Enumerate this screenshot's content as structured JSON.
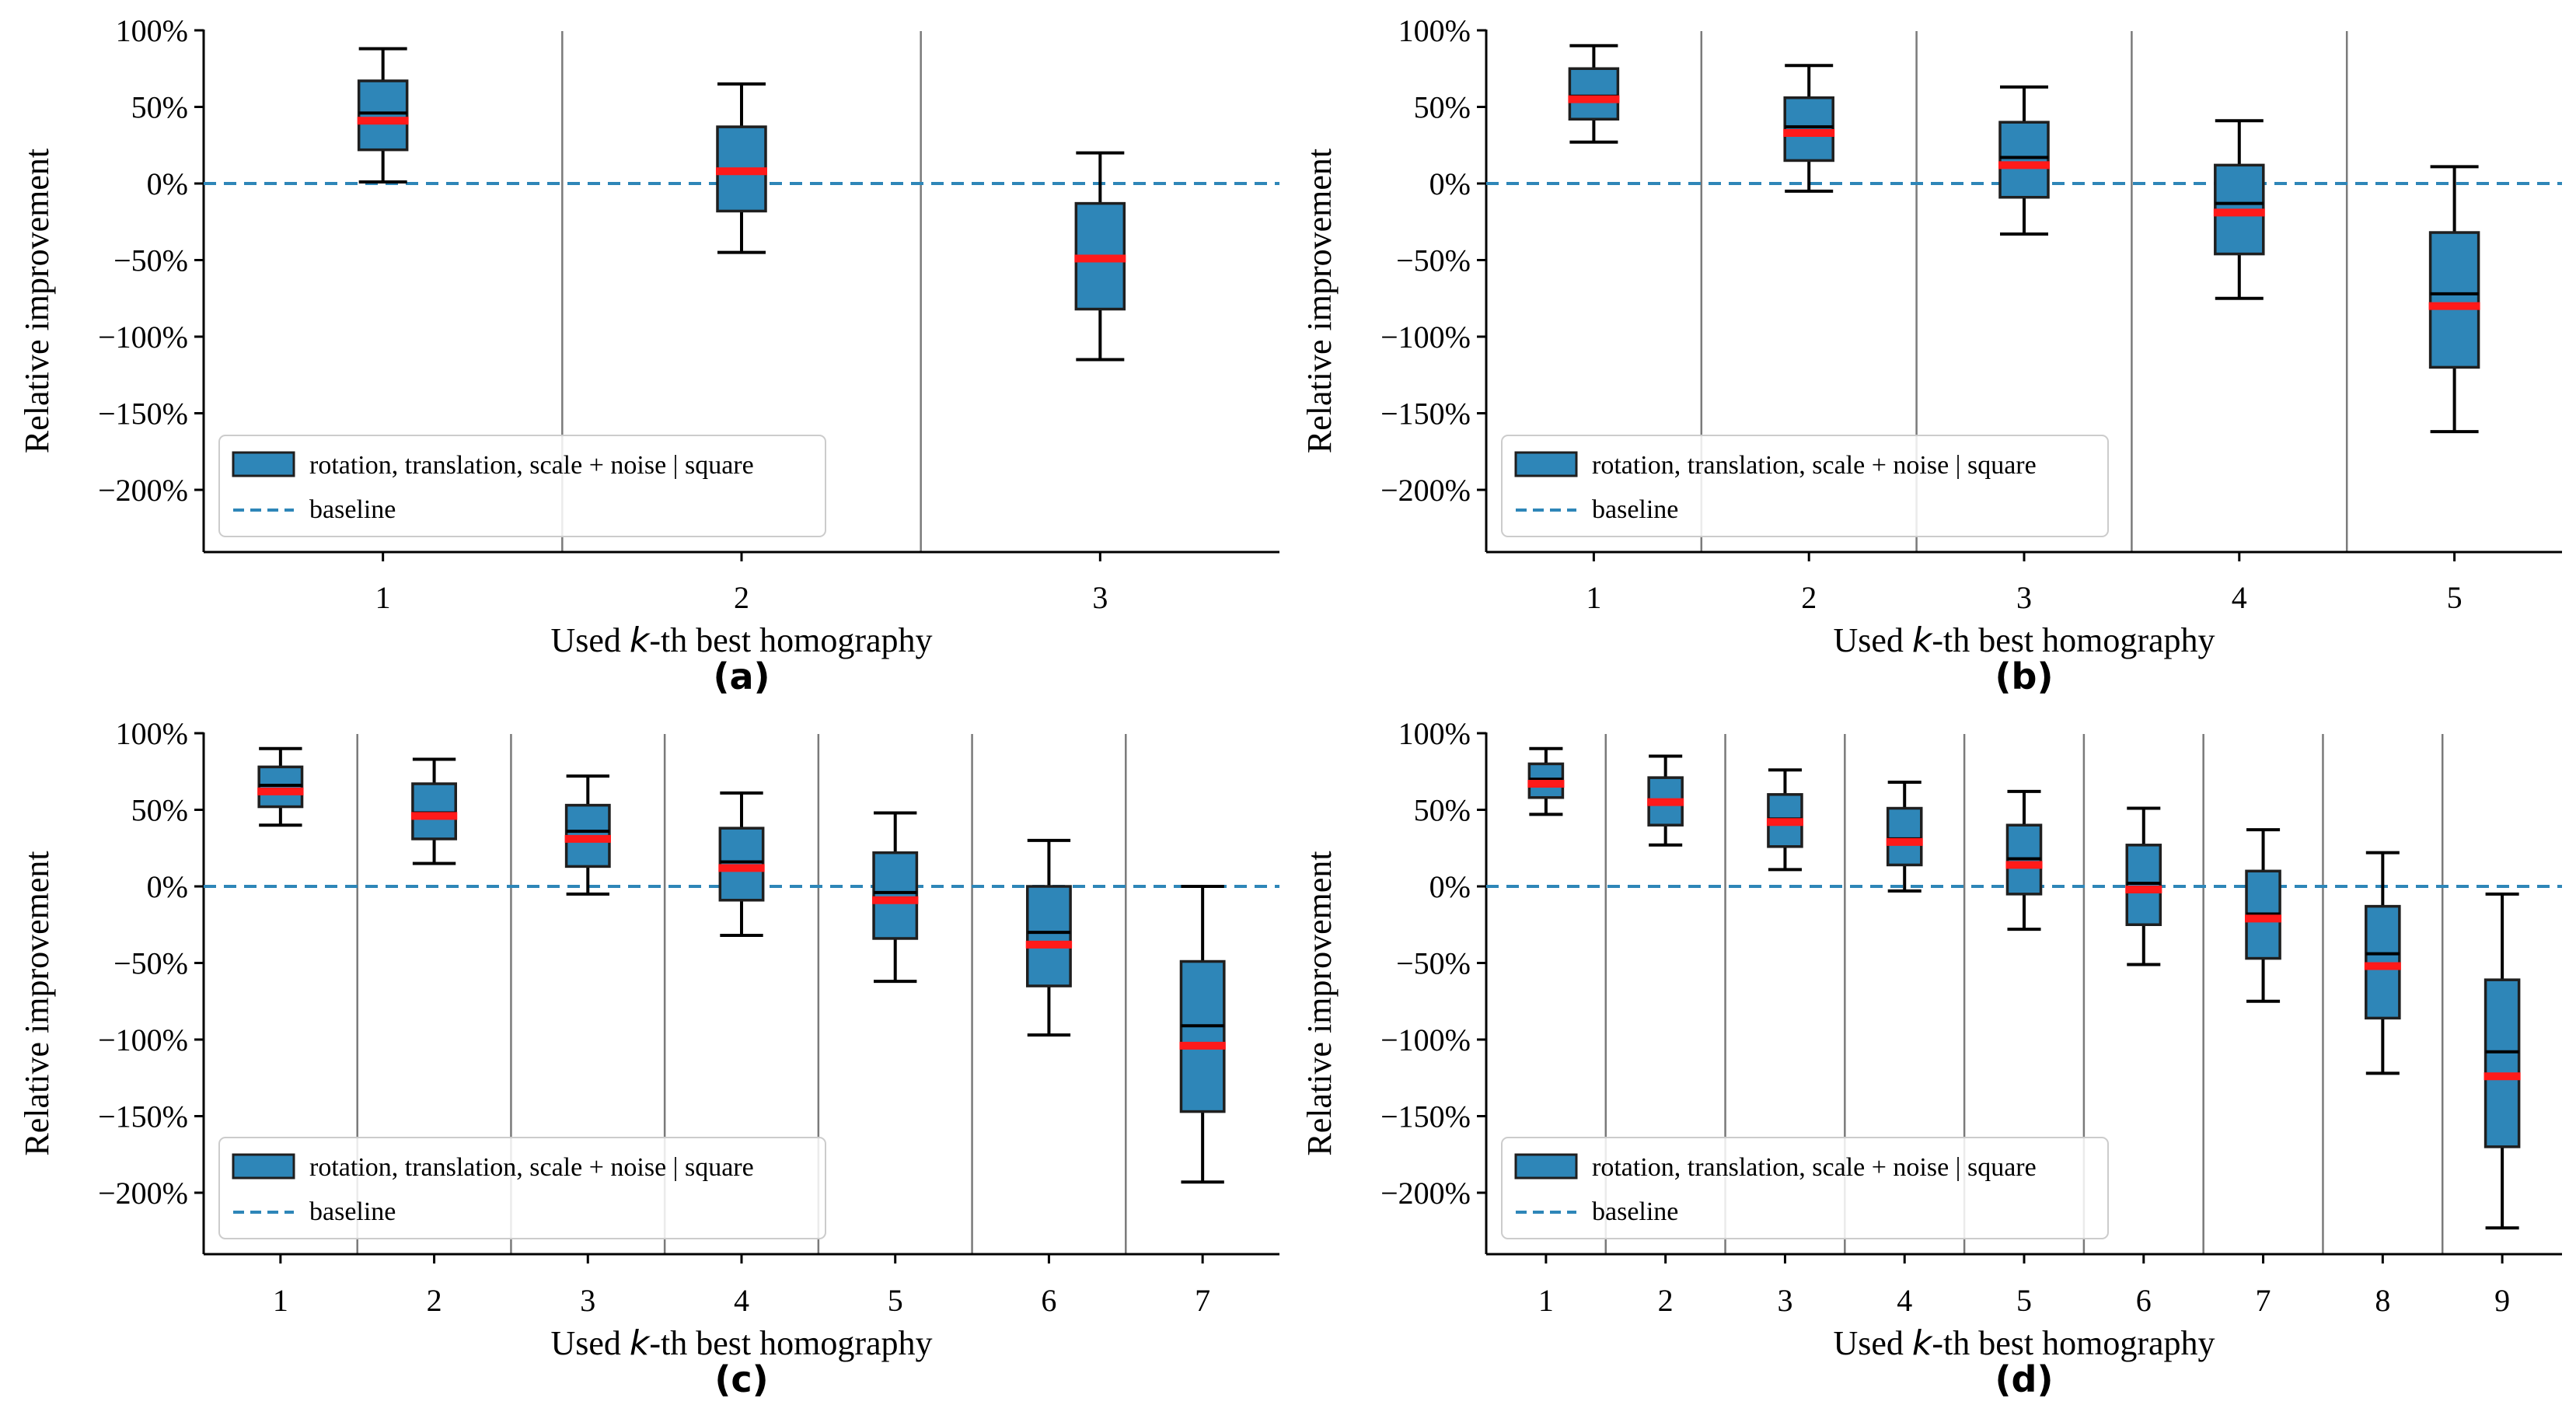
{
  "figure": {
    "colors": {
      "box": "#2e86b8",
      "box_edge": "#1f1f1f",
      "median_red": "#ff1a1a",
      "median_black": "#000000",
      "baseline": "#2e86b8",
      "separator": "#7a7a7a"
    }
  },
  "chart_data": [
    {
      "type": "box",
      "panel_label": "(a)",
      "xlabel_prefix": "Used ",
      "xlabel_var": "k",
      "xlabel_suffix": "-th best homography",
      "ylabel": "Relative improvement",
      "ylim": [
        -240,
        100
      ],
      "yticks": [
        100,
        50,
        0,
        -50,
        -100,
        -150,
        -200
      ],
      "ytick_labels": [
        "100%",
        "50%",
        "0%",
        "−50%",
        "−100%",
        "−150%",
        "−200%"
      ],
      "categories": [
        "1",
        "2",
        "3"
      ],
      "baseline": 0,
      "legend": {
        "box_label": "rotation, translation, scale + noise | square",
        "line_label": "baseline",
        "position": "lower-left"
      },
      "boxes": [
        {
          "whislo": 1,
          "q1": 22,
          "med": 46,
          "mean": 41,
          "q3": 67,
          "whishi": 88
        },
        {
          "whislo": -45,
          "q1": -18,
          "med": 7,
          "mean": 8,
          "q3": 37,
          "whishi": 65
        },
        {
          "whislo": -115,
          "q1": -82,
          "med": -49,
          "mean": -49,
          "q3": -13,
          "whishi": 20
        }
      ]
    },
    {
      "type": "box",
      "panel_label": "(b)",
      "xlabel_prefix": "Used ",
      "xlabel_var": "k",
      "xlabel_suffix": "-th best homography",
      "ylabel": "Relative improvement",
      "ylim": [
        -240,
        100
      ],
      "yticks": [
        100,
        50,
        0,
        -50,
        -100,
        -150,
        -200
      ],
      "ytick_labels": [
        "100%",
        "50%",
        "0%",
        "−50%",
        "−100%",
        "−150%",
        "−200%"
      ],
      "categories": [
        "1",
        "2",
        "3",
        "4",
        "5"
      ],
      "baseline": 0,
      "legend": {
        "box_label": "rotation, translation, scale + noise | square",
        "line_label": "baseline",
        "position": "lower-left"
      },
      "boxes": [
        {
          "whislo": 27,
          "q1": 42,
          "med": 57,
          "mean": 55,
          "q3": 75,
          "whishi": 90
        },
        {
          "whislo": -5,
          "q1": 15,
          "med": 37,
          "mean": 33,
          "q3": 56,
          "whishi": 77
        },
        {
          "whislo": -33,
          "q1": -9,
          "med": 17,
          "mean": 12,
          "q3": 40,
          "whishi": 63
        },
        {
          "whislo": -75,
          "q1": -46,
          "med": -13,
          "mean": -19,
          "q3": 12,
          "whishi": 41
        },
        {
          "whislo": -162,
          "q1": -120,
          "med": -72,
          "mean": -80,
          "q3": -32,
          "whishi": 11
        }
      ]
    },
    {
      "type": "box",
      "panel_label": "(c)",
      "xlabel_prefix": "Used ",
      "xlabel_var": "k",
      "xlabel_suffix": "-th best homography",
      "ylabel": "Relative improvement",
      "ylim": [
        -240,
        100
      ],
      "yticks": [
        100,
        50,
        0,
        -50,
        -100,
        -150,
        -200
      ],
      "ytick_labels": [
        "100%",
        "50%",
        "0%",
        "−50%",
        "−100%",
        "−150%",
        "−200%"
      ],
      "categories": [
        "1",
        "2",
        "3",
        "4",
        "5",
        "6",
        "7"
      ],
      "baseline": 0,
      "legend": {
        "box_label": "rotation, translation, scale + noise | square",
        "line_label": "baseline",
        "position": "lower-left"
      },
      "boxes": [
        {
          "whislo": 40,
          "q1": 52,
          "med": 66,
          "mean": 62,
          "q3": 78,
          "whishi": 90
        },
        {
          "whislo": 15,
          "q1": 31,
          "med": 48,
          "mean": 46,
          "q3": 67,
          "whishi": 83
        },
        {
          "whislo": -5,
          "q1": 13,
          "med": 36,
          "mean": 31,
          "q3": 53,
          "whishi": 72
        },
        {
          "whislo": -32,
          "q1": -9,
          "med": 16,
          "mean": 12,
          "q3": 38,
          "whishi": 61
        },
        {
          "whislo": -62,
          "q1": -34,
          "med": -4,
          "mean": -9,
          "q3": 22,
          "whishi": 48
        },
        {
          "whislo": -97,
          "q1": -65,
          "med": -30,
          "mean": -38,
          "q3": 0,
          "whishi": 30
        },
        {
          "whislo": -193,
          "q1": -147,
          "med": -91,
          "mean": -104,
          "q3": -49,
          "whishi": 0
        }
      ]
    },
    {
      "type": "box",
      "panel_label": "(d)",
      "xlabel_prefix": "Used ",
      "xlabel_var": "k",
      "xlabel_suffix": "-th best homography",
      "ylabel": "Relative improvement",
      "ylim": [
        -240,
        100
      ],
      "yticks": [
        100,
        50,
        0,
        -50,
        -100,
        -150,
        -200
      ],
      "ytick_labels": [
        "100%",
        "50%",
        "0%",
        "−50%",
        "−100%",
        "−150%",
        "−200%"
      ],
      "categories": [
        "1",
        "2",
        "3",
        "4",
        "5",
        "6",
        "7",
        "8",
        "9"
      ],
      "baseline": 0,
      "legend": {
        "box_label": "rotation, translation, scale + noise | square",
        "line_label": "baseline",
        "position": "lower-left"
      },
      "boxes": [
        {
          "whislo": 47,
          "q1": 58,
          "med": 70,
          "mean": 67,
          "q3": 80,
          "whishi": 90
        },
        {
          "whislo": 27,
          "q1": 40,
          "med": 56,
          "mean": 55,
          "q3": 71,
          "whishi": 85
        },
        {
          "whislo": 11,
          "q1": 26,
          "med": 44,
          "mean": 42,
          "q3": 60,
          "whishi": 76
        },
        {
          "whislo": -3,
          "q1": 14,
          "med": 31,
          "mean": 29,
          "q3": 51,
          "whishi": 68
        },
        {
          "whislo": -28,
          "q1": -5,
          "med": 18,
          "mean": 14,
          "q3": 40,
          "whishi": 62
        },
        {
          "whislo": -51,
          "q1": -25,
          "med": 2,
          "mean": -2,
          "q3": 27,
          "whishi": 51
        },
        {
          "whislo": -75,
          "q1": -47,
          "med": -18,
          "mean": -21,
          "q3": 10,
          "whishi": 37
        },
        {
          "whislo": -122,
          "q1": -86,
          "med": -44,
          "mean": -52,
          "q3": -13,
          "whishi": 22
        },
        {
          "whislo": -223,
          "q1": -170,
          "med": -108,
          "mean": -124,
          "q3": -61,
          "whishi": -5
        }
      ]
    }
  ]
}
